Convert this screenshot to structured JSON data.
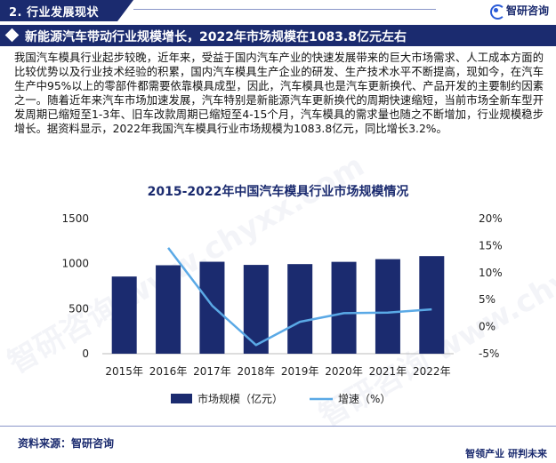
{
  "section": {
    "title": "2. 行业发展现状"
  },
  "brand": {
    "name": "智研咨询",
    "icon": "zhiyan-logo-icon"
  },
  "headline": "新能源汽车带动行业规模增长，2022年市场规模在1083.8亿元左右",
  "paragraph": "我国汽车模具行业起步较晚，近年来，受益于国内汽车产业的快速发展带来的巨大市场需求、人工成本方面的比较优势以及行业技术经验的积累，国内汽车模具生产企业的研发、生产技术水平不断提高，现如今，在汽车生产中95%以上的零部件都需要依靠模具成型，因此，汽车模具也是汽车更新换代、产品开发的主要制约因素之一。随着近年来汽车市场加速发展，汽车特别是新能源汽车更新换代的周期快速缩短，当前市场全新车型开发周期已缩短至1-3年、旧车改款周期已缩短至4-15个月，汽车模具的需求量也随之不断增加，行业规模稳步增长。据资料显示，2022年我国汽车模具行业市场规模为1083.8亿元，同比增长3.2%。",
  "chart_data": {
    "type": "bar",
    "title": "2015-2022年中国汽车模具行业市场规模情况",
    "categories": [
      "2015年",
      "2016年",
      "2017年",
      "2018年",
      "2019年",
      "2020年",
      "2021年",
      "2022年"
    ],
    "series": [
      {
        "name": "市场规模（亿元）",
        "type": "bar",
        "axis": "left",
        "color": "#1b2b6f",
        "values": [
          857,
          982,
          1021,
          986,
          995,
          1020,
          1050,
          1083.8
        ]
      },
      {
        "name": "增速（%）",
        "type": "line",
        "axis": "right",
        "color": "#5aa9e6",
        "values": [
          null,
          14.6,
          3.9,
          -3.4,
          0.9,
          2.5,
          2.6,
          3.2
        ]
      }
    ],
    "left_axis": {
      "ylim": [
        0,
        1500
      ],
      "ticks": [
        "0",
        "500",
        "1000",
        "1500"
      ]
    },
    "right_axis": {
      "ylim": [
        -5,
        20
      ],
      "ticks": [
        "-5%",
        "0%",
        "5%",
        "10%",
        "15%",
        "20%"
      ]
    },
    "legend": {
      "position": "bottom"
    },
    "grid": false
  },
  "source": "资料来源：智研咨询",
  "slogan": "智领产业  研判未来",
  "watermark": "智研咨询 www.chyxx.com"
}
